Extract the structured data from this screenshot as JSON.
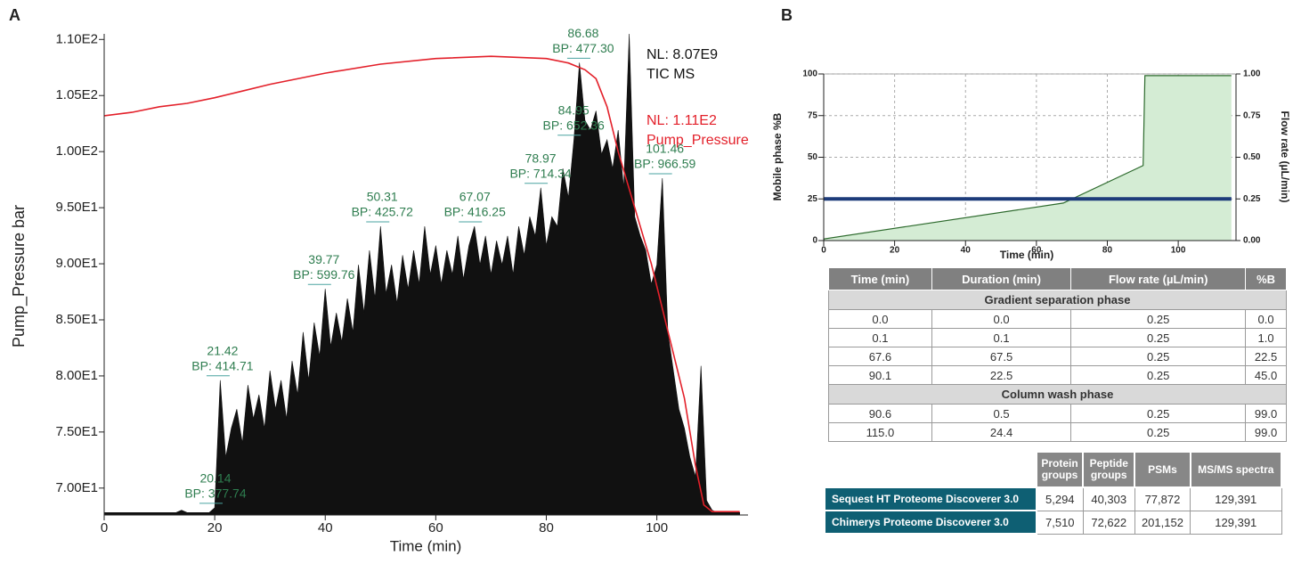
{
  "chart_data": [
    {
      "type": "line",
      "panel": "A",
      "y_label": "Pump_Pressure bar",
      "x_label": "Time (min)",
      "xlim": [
        0,
        116.5
      ],
      "xticks": [
        0,
        20,
        40,
        60,
        80,
        100
      ],
      "ylim": [
        67.6,
        110.5
      ],
      "yticks": [
        {
          "value": 70,
          "label": "7.00E1"
        },
        {
          "value": 75,
          "label": "7.50E1"
        },
        {
          "value": 80,
          "label": "8.00E1"
        },
        {
          "value": 85,
          "label": "8.50E1"
        },
        {
          "value": 90,
          "label": "9.00E1"
        },
        {
          "value": 95,
          "label": "9.50E1"
        },
        {
          "value": 100,
          "label": "1.00E2"
        },
        {
          "value": 105,
          "label": "1.05E2"
        },
        {
          "value": 110,
          "label": "1.10E2"
        }
      ],
      "y2lim": [
        0,
        100
      ],
      "grid": false,
      "series": [
        {
          "name": "TIC MS",
          "nl": "NL: 8.07E9",
          "color": "#111111",
          "fill": true,
          "axis": "y2",
          "x": [
            0,
            1,
            2,
            3,
            4,
            5,
            6,
            7,
            8,
            9,
            10,
            11,
            12,
            13,
            14,
            15,
            16,
            17,
            18,
            19,
            20,
            21,
            22,
            23,
            24,
            25,
            26,
            27,
            28,
            29,
            30,
            31,
            32,
            33,
            34,
            35,
            36,
            37,
            38,
            39,
            40,
            41,
            42,
            43,
            44,
            45,
            46,
            47,
            48,
            49,
            50,
            51,
            52,
            53,
            54,
            55,
            56,
            57,
            58,
            59,
            60,
            61,
            62,
            63,
            64,
            65,
            66,
            67,
            68,
            69,
            70,
            71,
            72,
            73,
            74,
            75,
            76,
            77,
            78,
            79,
            80,
            81,
            82,
            83,
            84,
            85,
            86,
            87,
            88,
            89,
            90,
            91,
            92,
            93,
            94,
            95,
            96,
            97,
            98,
            99,
            100,
            101,
            102,
            103,
            104,
            105,
            106,
            107,
            108,
            109,
            110,
            111,
            112,
            113,
            114,
            115
          ],
          "values": [
            0.5,
            0.5,
            0.5,
            0.5,
            0.5,
            0.5,
            0.5,
            0.5,
            0.5,
            0.5,
            0.5,
            0.5,
            0.5,
            0.5,
            1,
            0.5,
            0.5,
            0.5,
            0.5,
            0.5,
            1.5,
            28,
            12,
            18,
            22,
            15,
            27,
            20,
            25,
            18,
            30,
            22,
            28,
            20,
            32,
            25,
            38,
            28,
            40,
            33,
            47,
            35,
            42,
            36,
            45,
            38,
            52,
            42,
            55,
            45,
            60,
            46,
            52,
            44,
            54,
            47,
            55,
            48,
            60,
            50,
            56,
            48,
            55,
            50,
            58,
            49,
            56,
            60,
            52,
            58,
            50,
            57,
            52,
            58,
            50,
            60,
            54,
            62,
            58,
            68,
            56,
            62,
            60,
            72,
            66,
            78,
            94,
            82,
            80,
            84,
            75,
            78,
            72,
            80,
            68,
            100,
            62,
            58,
            55,
            48,
            52,
            70,
            38,
            30,
            22,
            18,
            12,
            8,
            31,
            3,
            1,
            0.5,
            0.5,
            0.5,
            0.5,
            0.5
          ]
        },
        {
          "name": "Pump_Pressure",
          "nl": "NL: 1.11E2",
          "color": "#e3202a",
          "fill": false,
          "x": [
            0,
            5,
            10,
            15,
            20,
            25,
            30,
            40,
            50,
            60,
            70,
            80,
            84,
            87,
            89,
            91,
            93,
            96,
            99,
            102,
            105,
            107,
            108.5,
            110,
            115
          ],
          "values": [
            103.2,
            103.5,
            104,
            104.3,
            104.8,
            105.4,
            106,
            107,
            107.8,
            108.3,
            108.5,
            108.3,
            107.9,
            107.3,
            106.5,
            104,
            100,
            95,
            90,
            84,
            78,
            72,
            68.5,
            67.9,
            67.9
          ]
        }
      ],
      "annotations": [
        {
          "time": 20.14,
          "intensity": 1.5,
          "text": "BP: 377.74"
        },
        {
          "time": 21.42,
          "intensity": 28,
          "text": "BP: 414.71"
        },
        {
          "time": 39.77,
          "intensity": 47,
          "text": "BP: 599.76"
        },
        {
          "time": 50.31,
          "intensity": 60,
          "text": "BP: 425.72"
        },
        {
          "time": 67.07,
          "intensity": 60,
          "text": "BP: 416.25"
        },
        {
          "time": 78.97,
          "intensity": 68,
          "text": "BP: 714.34"
        },
        {
          "time": 84.95,
          "intensity": 78,
          "text": "BP: 652.36"
        },
        {
          "time": 86.68,
          "intensity": 94,
          "text": "BP: 477.30"
        },
        {
          "time": 101.46,
          "intensity": 70,
          "text": "BP: 966.59"
        }
      ]
    },
    {
      "type": "line",
      "panel": "B",
      "y_label": "Mobile phase %B",
      "y2_label": "Flow rate (µL/min)",
      "x_label": "Time (min)",
      "xlim": [
        0,
        116.3
      ],
      "xticks": [
        0,
        20,
        40,
        60,
        80,
        100
      ],
      "ylim": [
        0,
        100
      ],
      "yticks": [
        0,
        25,
        50,
        75,
        100
      ],
      "y2lim": [
        0,
        1
      ],
      "y2ticks": [
        {
          "value": 0,
          "label": "0.00"
        },
        {
          "value": 0.25,
          "label": "0.25"
        },
        {
          "value": 0.5,
          "label": "0.50"
        },
        {
          "value": 0.75,
          "label": "0.75"
        },
        {
          "value": 1,
          "label": "1.00"
        }
      ],
      "grid": true,
      "series": [
        {
          "color": "#2d6a2d",
          "fill": true,
          "area_color": "#d4ecd4",
          "x": [
            0,
            0.1,
            67.6,
            90.1,
            90.6,
            115
          ],
          "values": [
            0,
            1,
            22.5,
            45,
            99,
            99
          ]
        },
        {
          "color": "#1d3b7a",
          "fill": false,
          "width": 4,
          "axis": "y2",
          "x": [
            0,
            115
          ],
          "values": [
            0.25,
            0.25
          ]
        }
      ]
    }
  ],
  "gradient_table": {
    "header": [
      "Time (min)",
      "Duration (min)",
      "Flow rate (µL/min)",
      "%B"
    ],
    "sections": [
      {
        "title": "Gradient separation phase",
        "rows": [
          [
            "0.0",
            "0.0",
            "0.25",
            "0.0"
          ],
          [
            "0.1",
            "0.1",
            "0.25",
            "1.0"
          ],
          [
            "67.6",
            "67.5",
            "0.25",
            "22.5"
          ],
          [
            "90.1",
            "22.5",
            "0.25",
            "45.0"
          ]
        ]
      },
      {
        "title": "Column wash phase",
        "rows": [
          [
            "90.6",
            "0.5",
            "0.25",
            "99.0"
          ],
          [
            "115.0",
            "24.4",
            "0.25",
            "99.0"
          ]
        ]
      }
    ]
  },
  "results_table": {
    "header": [
      "Protein groups",
      "Peptide groups",
      "PSMs",
      "MS/MS spectra"
    ],
    "rows": [
      {
        "name": "Sequest HT Proteome Discoverer 3.0",
        "values": [
          "5,294",
          "40,303",
          "77,872",
          "129,391"
        ]
      },
      {
        "name": "Chimerys Proteome Discoverer 3.0",
        "values": [
          "7,510",
          "72,622",
          "201,152",
          "129,391"
        ]
      }
    ]
  }
}
